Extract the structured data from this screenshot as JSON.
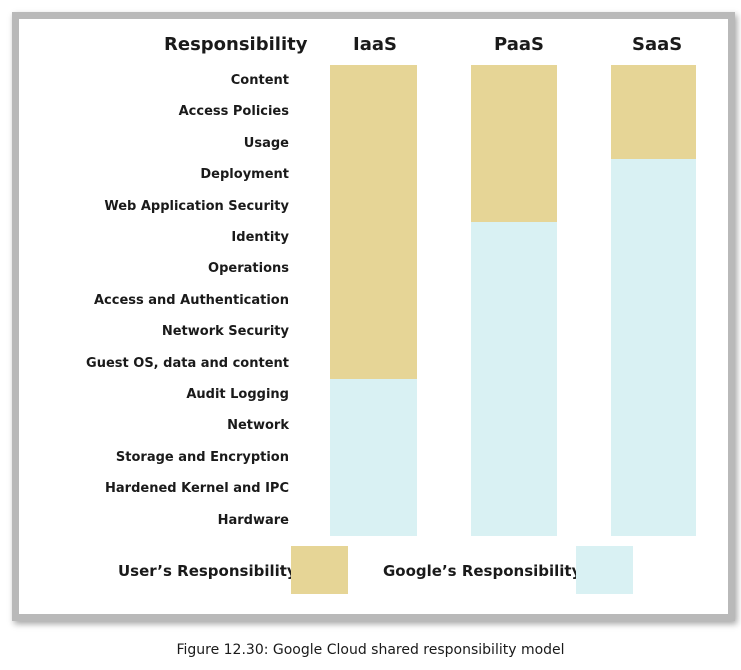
{
  "headers": {
    "responsibility": "Responsibility",
    "iaas": "IaaS",
    "paas": "PaaS",
    "saas": "SaaS"
  },
  "rows": [
    "Content",
    "Access Policies",
    "Usage",
    "Deployment",
    "Web Application Security",
    "Identity",
    "Operations",
    "Access and Authentication",
    "Network Security",
    "Guest OS, data and content",
    "Audit Logging",
    "Network",
    "Storage and Encryption",
    "Hardened Kernel and IPC",
    "Hardware"
  ],
  "columns": [
    {
      "name": "IaaS",
      "user_rows": 10,
      "google_rows": 5
    },
    {
      "name": "PaaS",
      "user_rows": 5,
      "google_rows": 10
    },
    {
      "name": "SaaS",
      "user_rows": 3,
      "google_rows": 12
    }
  ],
  "legend": {
    "user": "User’s Responsibility",
    "google": "Google’s Responsibility"
  },
  "colors": {
    "user": "#e6d596",
    "google": "#d9f1f3",
    "frame": "#b9b9b9"
  },
  "caption": "Figure 12.30: Google Cloud shared responsibility model"
}
